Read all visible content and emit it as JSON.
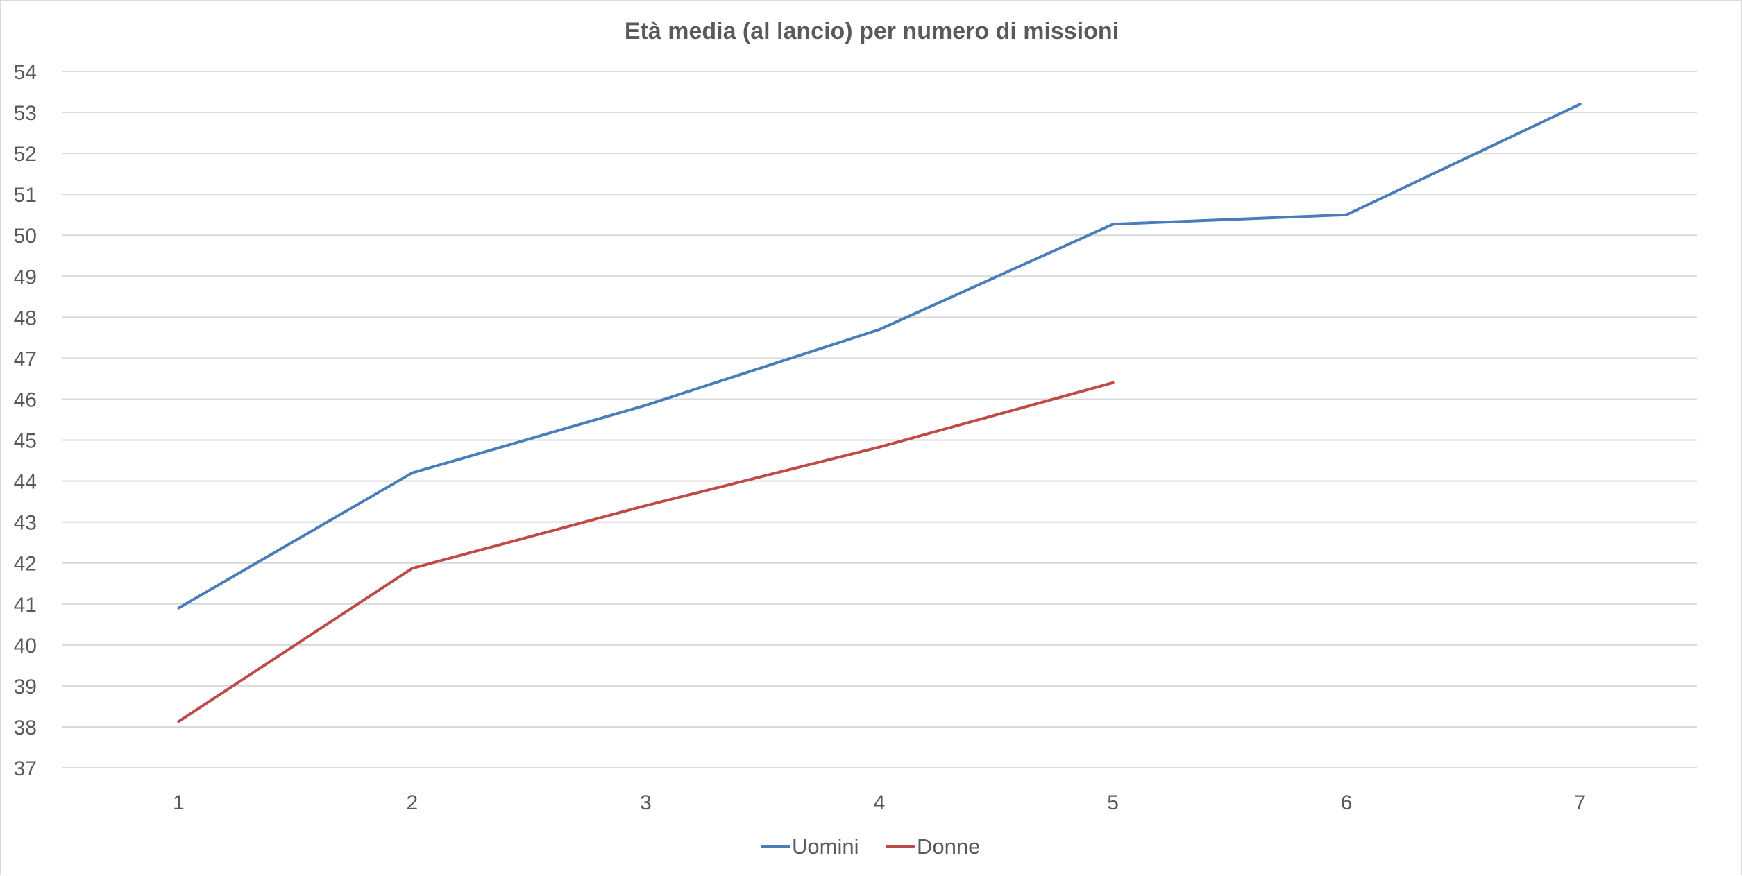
{
  "chart_data": {
    "type": "line",
    "title": "Età media (al lancio) per numero di missioni",
    "xlabel": "",
    "ylabel": "",
    "categories": [
      "1",
      "2",
      "3",
      "4",
      "5",
      "6",
      "7"
    ],
    "ylim": [
      37,
      54
    ],
    "yticks": [
      "37",
      "38",
      "39",
      "40",
      "41",
      "42",
      "43",
      "44",
      "45",
      "46",
      "47",
      "48",
      "49",
      "50",
      "51",
      "52",
      "53",
      "54"
    ],
    "grid": true,
    "legend_position": "bottom",
    "series": [
      {
        "name": "Uomini",
        "color": "#4a7ebb",
        "values": [
          40.9,
          44.2,
          45.85,
          47.7,
          50.27,
          50.5,
          53.2
        ]
      },
      {
        "name": "Donne",
        "color": "#be4b48",
        "values": [
          38.13,
          41.87,
          43.4,
          44.83,
          46.4,
          null,
          null
        ]
      }
    ]
  }
}
